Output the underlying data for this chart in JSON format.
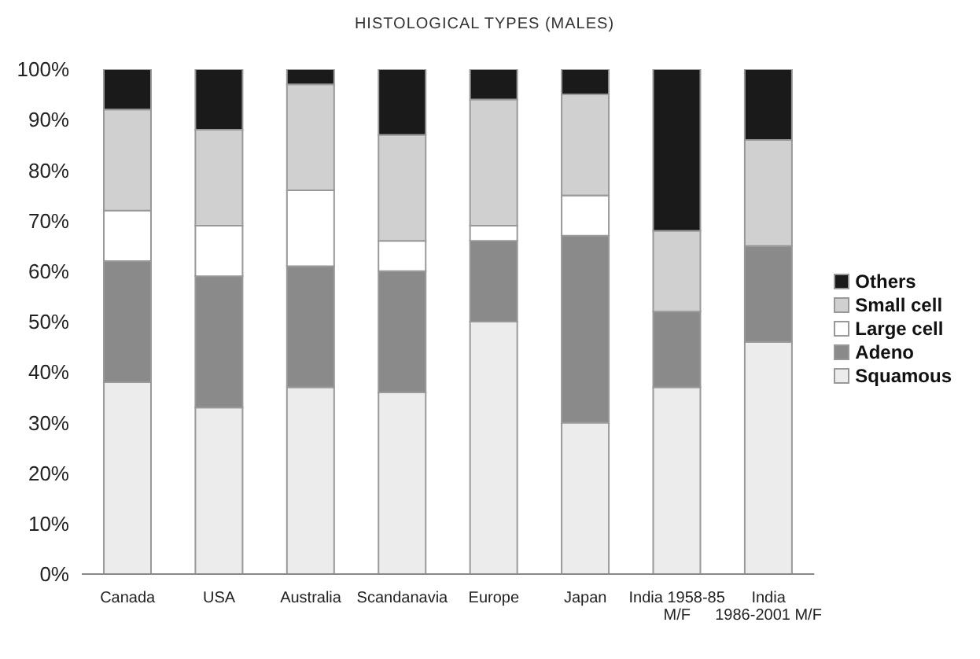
{
  "chart_data": {
    "type": "bar",
    "title": "HISTOLOGICAL TYPES (MALES)",
    "stacked": true,
    "legend": "right",
    "categories": [
      "Canada",
      "USA",
      "Australia",
      "Scandanavia",
      "Europe",
      "Japan",
      "India 1958-85 M/F",
      "India 1986-2001 M/F"
    ],
    "series": [
      {
        "name": "Squamous",
        "color": "#ececec",
        "values": [
          38,
          33,
          37,
          36,
          50,
          30,
          37,
          46
        ]
      },
      {
        "name": "Adeno",
        "color": "#8a8a8a",
        "values": [
          24,
          26,
          24,
          24,
          16,
          37,
          15,
          19
        ]
      },
      {
        "name": "Large cell",
        "color": "#ffffff",
        "values": [
          10,
          10,
          15,
          6,
          3,
          8,
          0,
          0
        ]
      },
      {
        "name": "Small cell",
        "color": "#d0d0d0",
        "values": [
          20,
          19,
          21,
          21,
          25,
          20,
          16,
          21
        ]
      },
      {
        "name": "Others",
        "color": "#1a1a1a",
        "values": [
          8,
          12,
          3,
          13,
          6,
          5,
          32,
          14
        ]
      }
    ],
    "ylim": [
      0,
      100
    ],
    "yticks": [
      {
        "value": 0,
        "label": "0%"
      },
      {
        "value": 10,
        "label": "10%"
      },
      {
        "value": 20,
        "label": "20%"
      },
      {
        "value": 30,
        "label": "30%"
      },
      {
        "value": 40,
        "label": "40%"
      },
      {
        "value": 50,
        "label": "50%"
      },
      {
        "value": 60,
        "label": "60%"
      },
      {
        "value": 70,
        "label": "70%"
      },
      {
        "value": 80,
        "label": "80%"
      },
      {
        "value": 90,
        "label": "90%"
      },
      {
        "value": 100,
        "label": "100%"
      }
    ]
  }
}
